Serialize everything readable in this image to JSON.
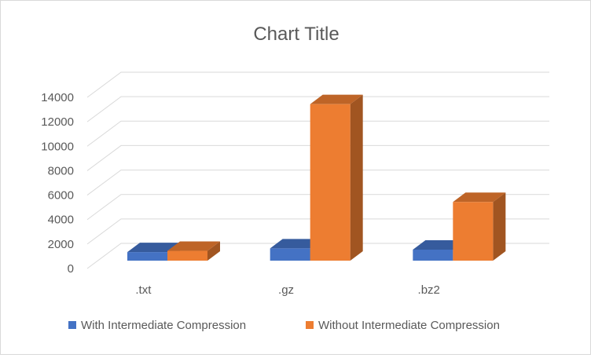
{
  "chart_data": {
    "type": "bar",
    "title": "Chart Title",
    "categories": [
      ".txt",
      ".gz",
      ".bz2"
    ],
    "series": [
      {
        "name": "With Intermediate Compression",
        "values": [
          700,
          1000,
          900
        ],
        "color": "#4472c4"
      },
      {
        "name": "Without Intermediate Compression",
        "values": [
          800,
          12800,
          4800
        ],
        "color": "#ed7d31"
      }
    ],
    "yticks": [
      0,
      2000,
      4000,
      6000,
      8000,
      10000,
      12000,
      14000
    ],
    "ylim": [
      0,
      14000
    ],
    "grid": true,
    "legend": "bottom",
    "style": "3d-column"
  }
}
